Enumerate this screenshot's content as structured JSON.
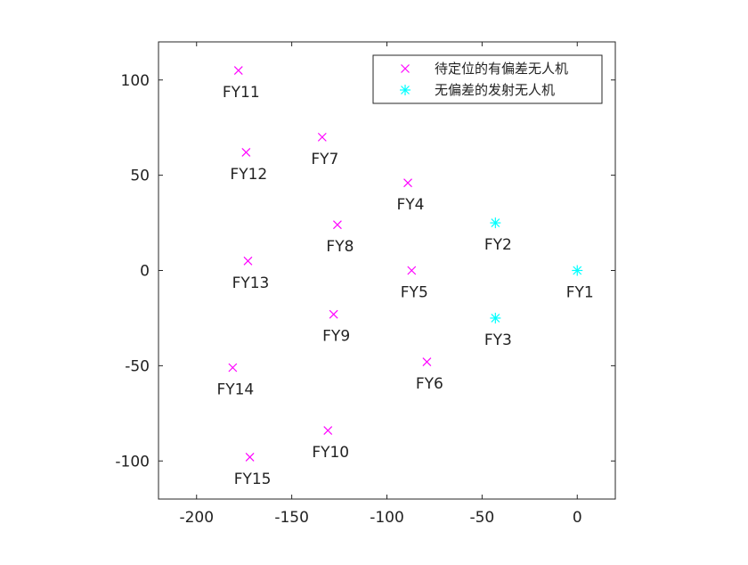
{
  "chart_data": {
    "type": "scatter",
    "title": "",
    "xlabel": "",
    "ylabel": "",
    "xlim": [
      -220,
      20
    ],
    "ylim": [
      -120,
      120
    ],
    "xticks": [
      -200,
      -150,
      -100,
      -50,
      0
    ],
    "yticks": [
      -100,
      -50,
      0,
      50,
      100
    ],
    "xtick_labels": [
      "-200",
      "-150",
      "-100",
      "-50",
      "0"
    ],
    "ytick_labels": [
      "-100",
      "-50",
      "0",
      "50",
      "100"
    ],
    "grid": false,
    "legend_position": "top-right",
    "series": [
      {
        "name": "待定位的有偏差无人机",
        "marker": "x",
        "color": "#ff00ff",
        "points": [
          {
            "label": "FY4",
            "x": -89,
            "y": 46
          },
          {
            "label": "FY5",
            "x": -87,
            "y": 0
          },
          {
            "label": "FY6",
            "x": -79,
            "y": -48
          },
          {
            "label": "FY7",
            "x": -134,
            "y": 70
          },
          {
            "label": "FY8",
            "x": -126,
            "y": 24
          },
          {
            "label": "FY9",
            "x": -128,
            "y": -23
          },
          {
            "label": "FY10",
            "x": -131,
            "y": -84
          },
          {
            "label": "FY11",
            "x": -178,
            "y": 105
          },
          {
            "label": "FY12",
            "x": -174,
            "y": 62
          },
          {
            "label": "FY13",
            "x": -173,
            "y": 5
          },
          {
            "label": "FY14",
            "x": -181,
            "y": -51
          },
          {
            "label": "FY15",
            "x": -172,
            "y": -98
          }
        ]
      },
      {
        "name": "无偏差的发射无人机",
        "marker": "asterisk",
        "color": "#00ffff",
        "points": [
          {
            "label": "FY1",
            "x": 0,
            "y": 0
          },
          {
            "label": "FY2",
            "x": -43,
            "y": 25
          },
          {
            "label": "FY3",
            "x": -43,
            "y": -25
          }
        ]
      }
    ]
  }
}
